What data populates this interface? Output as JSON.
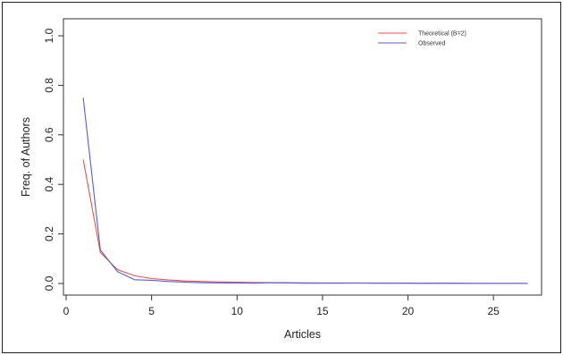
{
  "chart_data": {
    "type": "line",
    "xlabel": "Articles",
    "ylabel": "Freq. of Authors",
    "xlim": [
      0,
      28
    ],
    "ylim": [
      0,
      1.0
    ],
    "x_ticks": [
      0,
      5,
      10,
      15,
      20,
      25
    ],
    "y_ticks": [
      0.0,
      0.2,
      0.4,
      0.6,
      0.8,
      1.0
    ],
    "x_tick_labels": [
      "0",
      "5",
      "10",
      "15",
      "20",
      "25"
    ],
    "y_tick_labels": [
      "0.0",
      "0.2",
      "0.4",
      "0.6",
      "0.8",
      "1.0"
    ],
    "legend": {
      "placement": "top-right"
    },
    "series": [
      {
        "name": "Theoretical (B=2)",
        "color": "#e8524f",
        "x": [
          1,
          2,
          3,
          4,
          5,
          6,
          7,
          8,
          9,
          10,
          11,
          12,
          13,
          14,
          15,
          16,
          17,
          18,
          19,
          20,
          21,
          22,
          23,
          24,
          25,
          26,
          27
        ],
        "y": [
          0.5,
          0.125,
          0.056,
          0.031,
          0.02,
          0.014,
          0.01,
          0.008,
          0.006,
          0.005,
          0.004,
          0.0035,
          0.003,
          0.0026,
          0.0022,
          0.002,
          0.0017,
          0.0015,
          0.0014,
          0.0012,
          0.0011,
          0.001,
          0.001,
          0.0009,
          0.0008,
          0.0007,
          0.0007
        ]
      },
      {
        "name": "Observed",
        "color": "#5b5bdc",
        "x": [
          1,
          2,
          3,
          4,
          5,
          6,
          7,
          8,
          9,
          10,
          11,
          12,
          13,
          14,
          15,
          16,
          17,
          18,
          19,
          20,
          21,
          22,
          23,
          24,
          25,
          26,
          27
        ],
        "y": [
          0.75,
          0.135,
          0.048,
          0.015,
          0.013,
          0.008,
          0.005,
          0.003,
          0.002,
          0.002,
          0.001,
          0.003,
          0.002,
          0.001,
          0.001,
          0.001,
          0.002,
          0.001,
          0.001,
          0.001,
          0.0,
          0.001,
          0.0,
          0.0,
          0.0,
          0.0,
          0.0
        ]
      }
    ]
  }
}
